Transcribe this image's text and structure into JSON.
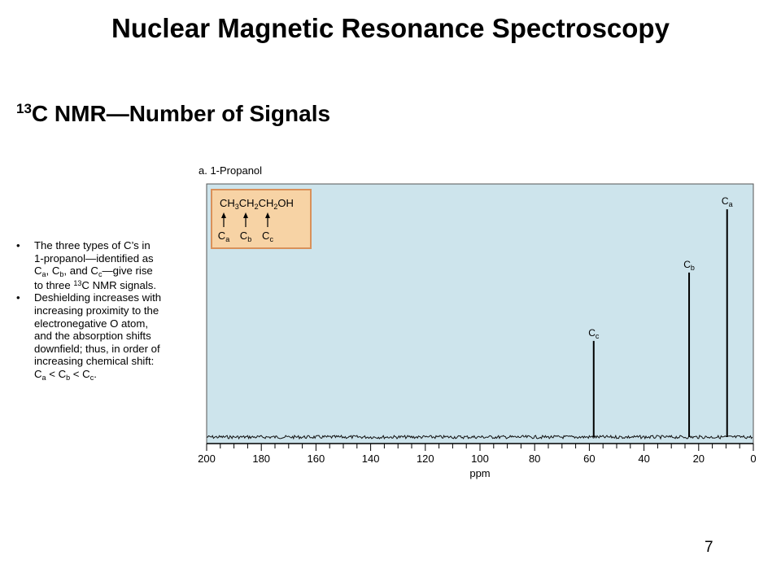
{
  "slide": {
    "title": "Nuclear Magnetic Resonance Spectroscopy",
    "subtitle_sup": "13",
    "subtitle_main": "C NMR—Number of Signals",
    "page_number": "7"
  },
  "bullets": {
    "b1": {
      "l1": "The three types of C’s in",
      "l2": "1-propanol—identified as",
      "l3_c1": "C",
      "l3_s1": "a",
      "l3_mid": ", C",
      "l3_s2": "b",
      "l3_mid2": ", and C",
      "l3_s3": "c",
      "l3_end": "—give rise",
      "l4_pre": "to three ",
      "l4_sup": "13",
      "l4_end": "C NMR signals."
    },
    "b2": {
      "l1": "Deshielding increases with",
      "l2": "increasing proximity to the",
      "l3": "electronegative O atom,",
      "l4": "and the absorption shifts",
      "l5": "downfield; thus, in order of",
      "l6": "increasing chemical shift:",
      "l7_c1": "C",
      "l7_s1": "a",
      "l7_lt1": " < C",
      "l7_s2": "b",
      "l7_lt2": " < C",
      "l7_s3": "c",
      "l7_end": "."
    }
  },
  "chart_data": {
    "type": "line",
    "title": "a. 1-Propanol",
    "xlabel": "ppm",
    "ylabel": "",
    "xlim": [
      200,
      0
    ],
    "x_reversed": true,
    "xticks": [
      200,
      180,
      160,
      140,
      120,
      100,
      80,
      60,
      40,
      20,
      0
    ],
    "grid": false,
    "background": "#cde4ec",
    "series": [
      {
        "name": "peaks",
        "x": [
          58.4,
          23.5,
          9.6
        ],
        "intensity": [
          0.38,
          0.65,
          0.9
        ],
        "labels": [
          {
            "c": "C",
            "s": "c"
          },
          {
            "c": "C",
            "s": "b"
          },
          {
            "c": "C",
            "s": "a"
          }
        ]
      }
    ],
    "inset": {
      "formula": [
        {
          "t": "CH"
        },
        {
          "s": "3"
        },
        {
          "t": "CH"
        },
        {
          "s": "2"
        },
        {
          "t": "CH"
        },
        {
          "s": "2"
        },
        {
          "t": "OH"
        }
      ],
      "labels": [
        {
          "c": "C",
          "s": "a"
        },
        {
          "c": "C",
          "s": "b"
        },
        {
          "c": "C",
          "s": "c"
        }
      ],
      "fill": "#f7d3a5",
      "border": "#d9915a"
    }
  }
}
